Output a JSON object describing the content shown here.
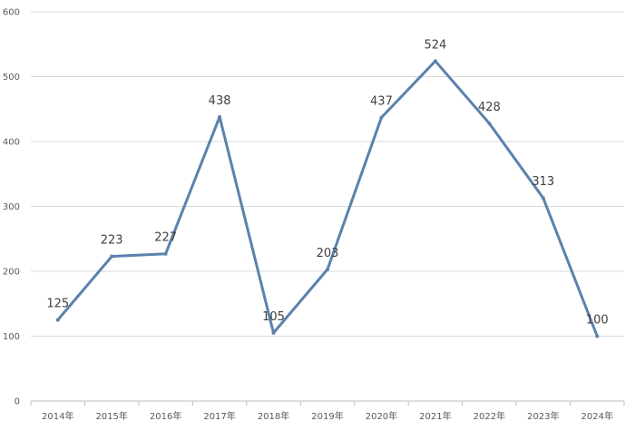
{
  "colors": {
    "series": "#5a82ad",
    "grid": "#d9d9d9",
    "axis": "#bfbfbf"
  },
  "chart_data": {
    "type": "line",
    "title": "",
    "xlabel": "",
    "ylabel": "",
    "categories": [
      "2014年",
      "2015年",
      "2016年",
      "2017年",
      "2018年",
      "2019年",
      "2020年",
      "2021年",
      "2022年",
      "2023年",
      "2024年"
    ],
    "series": [
      {
        "values": [
          125,
          223,
          227,
          438,
          105,
          203,
          437,
          524,
          428,
          313,
          100
        ]
      }
    ],
    "data_labels": [
      "125",
      "223",
      "227",
      "438",
      "105",
      "203",
      "437",
      "524",
      "428",
      "313",
      "100"
    ],
    "ylim": [
      0,
      600
    ],
    "yticks": [
      0,
      100,
      200,
      300,
      400,
      500,
      600
    ],
    "ytick_labels": [
      "0",
      "100",
      "200",
      "300",
      "400",
      "500",
      "600"
    ],
    "grid": true,
    "legend": "none"
  }
}
